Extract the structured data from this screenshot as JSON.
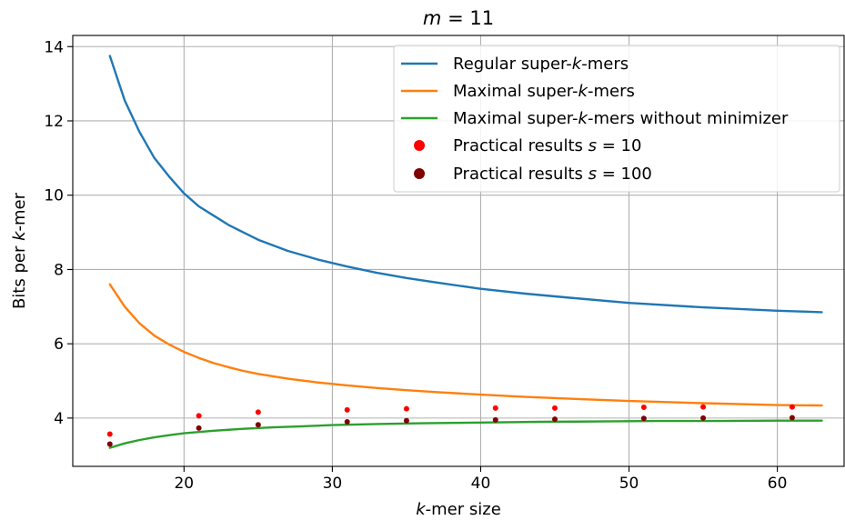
{
  "chart_data": {
    "type": "line",
    "title": {
      "pre": "",
      "italic": "m",
      "post": " = 11"
    },
    "xlabel": {
      "pre": "",
      "italic": "k",
      "post": "-mer size"
    },
    "ylabel": {
      "pre": "Bits per ",
      "italic": "k",
      "post": "-mer"
    },
    "xlim": [
      12.5,
      64.5
    ],
    "ylim": [
      2.7,
      14.3
    ],
    "xticks": [
      20,
      30,
      40,
      50,
      60
    ],
    "yticks": [
      4,
      6,
      8,
      10,
      12,
      14
    ],
    "grid": true,
    "legend_position": "top-right",
    "series": [
      {
        "type": "line",
        "color": "#1f77b4",
        "label": {
          "pre": "Regular super-",
          "italic": "k",
          "post": "-mers"
        },
        "x": [
          15,
          16,
          17,
          18,
          19,
          20,
          21,
          22,
          23,
          24,
          25,
          27,
          29,
          31,
          33,
          35,
          37,
          40,
          43,
          46,
          50,
          55,
          60,
          63
        ],
        "y": [
          13.75,
          12.55,
          11.7,
          11.0,
          10.5,
          10.05,
          9.7,
          9.45,
          9.2,
          9.0,
          8.8,
          8.5,
          8.27,
          8.08,
          7.91,
          7.77,
          7.65,
          7.48,
          7.35,
          7.24,
          7.1,
          6.98,
          6.89,
          6.85
        ]
      },
      {
        "type": "line",
        "color": "#ff7f0e",
        "label": {
          "pre": "Maximal super-",
          "italic": "k",
          "post": "-mers"
        },
        "x": [
          15,
          16,
          17,
          18,
          19,
          20,
          21,
          22,
          23,
          24,
          25,
          27,
          29,
          31,
          33,
          35,
          37,
          40,
          43,
          46,
          50,
          55,
          60,
          63
        ],
        "y": [
          7.6,
          7.0,
          6.55,
          6.22,
          5.98,
          5.78,
          5.62,
          5.48,
          5.37,
          5.27,
          5.19,
          5.06,
          4.96,
          4.88,
          4.81,
          4.75,
          4.7,
          4.63,
          4.57,
          4.52,
          4.46,
          4.4,
          4.35,
          4.34
        ]
      },
      {
        "type": "line",
        "color": "#2ca02c",
        "label": {
          "pre": "Maximal super-",
          "italic": "k",
          "post": "-mers without minimizer"
        },
        "x": [
          15,
          16,
          17,
          18,
          19,
          20,
          22,
          24,
          26,
          28,
          30,
          33,
          36,
          40,
          44,
          48,
          52,
          56,
          60,
          63
        ],
        "y": [
          3.2,
          3.32,
          3.41,
          3.48,
          3.54,
          3.59,
          3.66,
          3.71,
          3.75,
          3.78,
          3.81,
          3.84,
          3.86,
          3.88,
          3.9,
          3.91,
          3.92,
          3.92,
          3.93,
          3.93
        ]
      },
      {
        "type": "scatter",
        "color": "#ff0000",
        "label": {
          "pre": "Practical results ",
          "italic": "s",
          "post": " = 10"
        },
        "x": [
          15,
          21,
          25,
          31,
          35,
          41,
          45,
          51,
          55,
          61
        ],
        "y": [
          3.57,
          4.06,
          4.16,
          4.22,
          4.25,
          4.27,
          4.27,
          4.29,
          4.3,
          4.3
        ]
      },
      {
        "type": "scatter",
        "color": "#7f0000",
        "label": {
          "pre": "Practical results ",
          "italic": "s",
          "post": " = 100"
        },
        "x": [
          15,
          21,
          25,
          31,
          35,
          41,
          45,
          51,
          55,
          61
        ],
        "y": [
          3.3,
          3.73,
          3.82,
          3.9,
          3.93,
          3.95,
          3.97,
          3.99,
          4.0,
          4.01
        ]
      }
    ]
  }
}
